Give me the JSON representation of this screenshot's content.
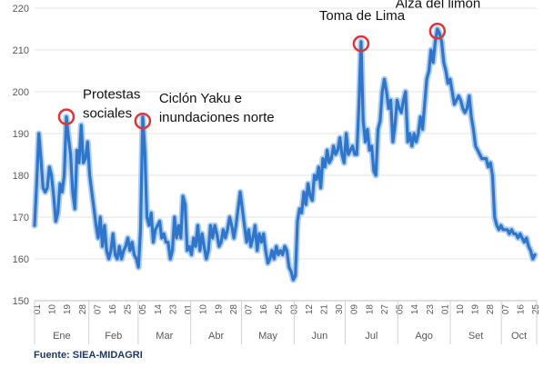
{
  "source_note": "Fuente: SIEA-MIDAGRI",
  "colors": {
    "line": "#2f75c9",
    "line_glow": "#9cc3ec",
    "highlight_ring": "#e0343c",
    "grid": "#e4e4e4",
    "axis_text": "#595959",
    "annotation_text": "#111111"
  },
  "chart_data": {
    "type": "line",
    "title": "",
    "xlabel": "",
    "ylabel": "",
    "ylim": [
      150,
      220
    ],
    "yticks": [
      150,
      160,
      170,
      180,
      190,
      200,
      210,
      220
    ],
    "grid": {
      "horizontal": true,
      "vertical": false
    },
    "x_start_label": "01",
    "x_tick_labels": [
      "01",
      "10",
      "19",
      "28",
      "07",
      "16",
      "25",
      "05",
      "14",
      "23",
      "01",
      "10",
      "19",
      "28",
      "07",
      "16",
      "25",
      "03",
      "12",
      "21",
      "30",
      "09",
      "18",
      "27",
      "05",
      "14",
      "23",
      "01",
      "10",
      "19",
      "28",
      "07",
      "16",
      "25"
    ],
    "months": [
      "Ene",
      "Feb",
      "Mar",
      "Abr",
      "May",
      "Jun",
      "Jul",
      "Ago",
      "Set",
      "Oct"
    ],
    "month_tick_index": [
      0,
      3.44,
      6.56,
      9.89,
      13.11,
      16.44,
      19.67,
      23,
      26.33,
      29.56,
      31.8
    ],
    "values": [
      168,
      178,
      190,
      184,
      177,
      176,
      177,
      182,
      180,
      175,
      169,
      171,
      178,
      176,
      180,
      194,
      189,
      185,
      176,
      172,
      186,
      183,
      192,
      183,
      184,
      188,
      180,
      176,
      172,
      168,
      165,
      170,
      163,
      168,
      162,
      160,
      162,
      166,
      161,
      160,
      163,
      160,
      162,
      163,
      165,
      162,
      164,
      161,
      160,
      158,
      167,
      194,
      186,
      170,
      168,
      171,
      164,
      167,
      168,
      169,
      165,
      166,
      164,
      164,
      160,
      162,
      170,
      165,
      168,
      165,
      175,
      173,
      162,
      163,
      161,
      165,
      163,
      168,
      162,
      166,
      163,
      160,
      162,
      168,
      165,
      168,
      166,
      163,
      164,
      167,
      165,
      167,
      170,
      168,
      165,
      168,
      172,
      176,
      172,
      168,
      164,
      167,
      163,
      165,
      168,
      162,
      166,
      164,
      166,
      162,
      159,
      160,
      162,
      160,
      163,
      161,
      162,
      161,
      163,
      162,
      158,
      157,
      155,
      156,
      169,
      172,
      171,
      176,
      173,
      178,
      175,
      174,
      180,
      179,
      182,
      177,
      184,
      182,
      186,
      183,
      184,
      187,
      185,
      186,
      189,
      185,
      183,
      190,
      185,
      186,
      187,
      185,
      185,
      197,
      212,
      193,
      188,
      191,
      186,
      187,
      181,
      180,
      191,
      193,
      200,
      203,
      200,
      196,
      198,
      188,
      192,
      198,
      196,
      195,
      198,
      200,
      188,
      190,
      187,
      190,
      188,
      190,
      194,
      191,
      197,
      203,
      205,
      210,
      207,
      212,
      215,
      214,
      212,
      207,
      205,
      202,
      203,
      200,
      197,
      198,
      199,
      198,
      196,
      195,
      196,
      199,
      194,
      191,
      187,
      186,
      185,
      184,
      184,
      184,
      182,
      183,
      180,
      170,
      168,
      167,
      168,
      167,
      167,
      167,
      166,
      167,
      166,
      166,
      165,
      166,
      165,
      164,
      165,
      163,
      162,
      160,
      161
    ],
    "annotations": [
      {
        "text": "Protestas sociales",
        "lines": [
          "Protestas",
          "sociales"
        ],
        "x_index": 15,
        "y": 194
      },
      {
        "text": "Ciclón Yaku e inundaciones norte",
        "lines": [
          "Ciclón Yaku e",
          "inundaciones norte"
        ],
        "x_index": 51,
        "y": 193
      },
      {
        "text": "Toma de Lima",
        "lines": [
          "Toma de Lima"
        ],
        "x_index": 154,
        "y": 211.5
      },
      {
        "text": "Alza del limón",
        "lines": [
          "Alza del limón"
        ],
        "x_index": 190,
        "y": 214.5
      }
    ]
  }
}
